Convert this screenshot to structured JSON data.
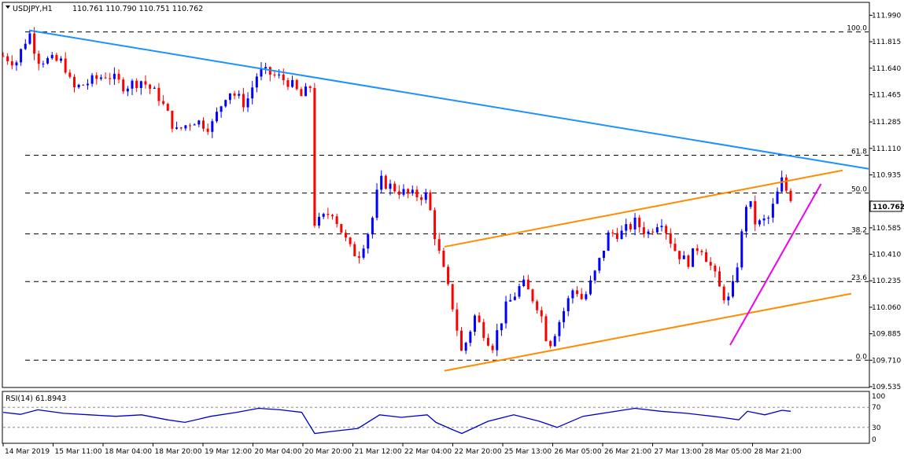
{
  "header": {
    "symbol": "USDJPY,H1",
    "ohlc": "110.761 110.790 110.751 110.762"
  },
  "rsi_header": {
    "label": "RSI(14) 61.8943"
  },
  "current_price": "110.762",
  "colors": {
    "up": "#0000ff",
    "down": "#ff0000",
    "resistance_line": "#1e90ff",
    "channel": "#ff8c00",
    "support_line": "#ee00ee",
    "rsi_line": "#0000cd",
    "grid": "#000000"
  },
  "chart_data": [
    {
      "type": "candlestick",
      "title": "USDJPY,H1",
      "ylim": [
        109.535,
        112.07
      ],
      "y_ticks": [
        "111.990",
        "111.815",
        "111.640",
        "111.465",
        "111.285",
        "111.110",
        "110.935",
        "110.762",
        "110.585",
        "110.410",
        "110.235",
        "110.060",
        "109.885",
        "109.710",
        "109.535"
      ],
      "x_ticks": [
        "14 Mar 2019",
        "15 Mar 11:00",
        "18 Mar 04:00",
        "18 Mar 20:00",
        "19 Mar 12:00",
        "20 Mar 04:00",
        "20 Mar 20:00",
        "21 Mar 12:00",
        "22 Mar 04:00",
        "22 Mar 20:00",
        "25 Mar 13:00",
        "26 Mar 05:00",
        "26 Mar 21:00",
        "27 Mar 13:00",
        "28 Mar 05:00",
        "28 Mar 21:00"
      ],
      "fibonacci": [
        {
          "label": "100.0",
          "value": 111.88
        },
        {
          "label": "61.8",
          "value": 111.065
        },
        {
          "label": "50.0",
          "value": 110.815
        },
        {
          "label": "38.2",
          "value": 110.545
        },
        {
          "label": "23.6",
          "value": 110.23
        },
        {
          "label": "0.0",
          "value": 109.71
        }
      ],
      "trendlines": [
        {
          "name": "resistance",
          "from": [
            0.03,
            111.89
          ],
          "to": [
            1.0,
            110.975
          ]
        },
        {
          "name": "channel-upper",
          "from": [
            0.51,
            110.46
          ],
          "to": [
            0.97,
            110.965
          ]
        },
        {
          "name": "channel-lower",
          "from": [
            0.51,
            109.64
          ],
          "to": [
            0.98,
            110.15
          ]
        },
        {
          "name": "support",
          "from": [
            0.84,
            109.81
          ],
          "to": [
            0.945,
            110.875
          ]
        }
      ],
      "path": [
        [
          0.0,
          111.72
        ],
        [
          0.015,
          111.68
        ],
        [
          0.03,
          111.88
        ],
        [
          0.04,
          111.7
        ],
        [
          0.07,
          111.68
        ],
        [
          0.08,
          111.5
        ],
        [
          0.1,
          111.55
        ],
        [
          0.12,
          111.6
        ],
        [
          0.14,
          111.52
        ],
        [
          0.16,
          111.56
        ],
        [
          0.18,
          111.45
        ],
        [
          0.2,
          111.22
        ],
        [
          0.22,
          111.3
        ],
        [
          0.24,
          111.25
        ],
        [
          0.26,
          111.5
        ],
        [
          0.28,
          111.4
        ],
        [
          0.295,
          111.62
        ],
        [
          0.31,
          111.6
        ],
        [
          0.33,
          111.55
        ],
        [
          0.345,
          111.45
        ],
        [
          0.355,
          111.52
        ],
        [
          0.36,
          110.6
        ],
        [
          0.38,
          110.7
        ],
        [
          0.4,
          110.45
        ],
        [
          0.41,
          110.4
        ],
        [
          0.425,
          110.6
        ],
        [
          0.435,
          110.9
        ],
        [
          0.45,
          110.85
        ],
        [
          0.47,
          110.8
        ],
        [
          0.49,
          110.8
        ],
        [
          0.5,
          110.5
        ],
        [
          0.52,
          110.05
        ],
        [
          0.53,
          109.75
        ],
        [
          0.545,
          110.0
        ],
        [
          0.555,
          109.9
        ],
        [
          0.565,
          109.8
        ],
        [
          0.58,
          110.05
        ],
        [
          0.6,
          110.22
        ],
        [
          0.62,
          110.05
        ],
        [
          0.63,
          109.8
        ],
        [
          0.645,
          110.0
        ],
        [
          0.66,
          110.2
        ],
        [
          0.67,
          110.1
        ],
        [
          0.685,
          110.3
        ],
        [
          0.7,
          110.55
        ],
        [
          0.715,
          110.55
        ],
        [
          0.73,
          110.62
        ],
        [
          0.745,
          110.55
        ],
        [
          0.76,
          110.65
        ],
        [
          0.775,
          110.45
        ],
        [
          0.79,
          110.35
        ],
        [
          0.805,
          110.48
        ],
        [
          0.82,
          110.3
        ],
        [
          0.83,
          110.15
        ],
        [
          0.84,
          110.1
        ],
        [
          0.85,
          110.4
        ],
        [
          0.86,
          110.8
        ],
        [
          0.87,
          110.6
        ],
        [
          0.885,
          110.65
        ],
        [
          0.9,
          110.9
        ],
        [
          0.91,
          110.762
        ]
      ]
    },
    {
      "type": "line",
      "title": "RSI(14) 61.8943",
      "ylim": [
        0,
        100
      ],
      "y_ticks": [
        "100",
        "70",
        "30",
        "0"
      ],
      "levels": [
        70,
        30
      ],
      "x": [
        0.0,
        0.02,
        0.04,
        0.07,
        0.1,
        0.13,
        0.16,
        0.19,
        0.21,
        0.24,
        0.27,
        0.295,
        0.32,
        0.345,
        0.36,
        0.38,
        0.41,
        0.435,
        0.46,
        0.49,
        0.5,
        0.52,
        0.53,
        0.56,
        0.59,
        0.62,
        0.64,
        0.67,
        0.7,
        0.73,
        0.76,
        0.79,
        0.82,
        0.83,
        0.85,
        0.86,
        0.88,
        0.9,
        0.91
      ],
      "values": [
        60,
        56,
        65,
        58,
        55,
        52,
        55,
        45,
        40,
        52,
        60,
        68,
        65,
        60,
        18,
        22,
        28,
        55,
        50,
        55,
        40,
        25,
        18,
        42,
        55,
        42,
        30,
        52,
        60,
        68,
        62,
        58,
        52,
        50,
        45,
        62,
        55,
        64,
        62
      ]
    }
  ]
}
